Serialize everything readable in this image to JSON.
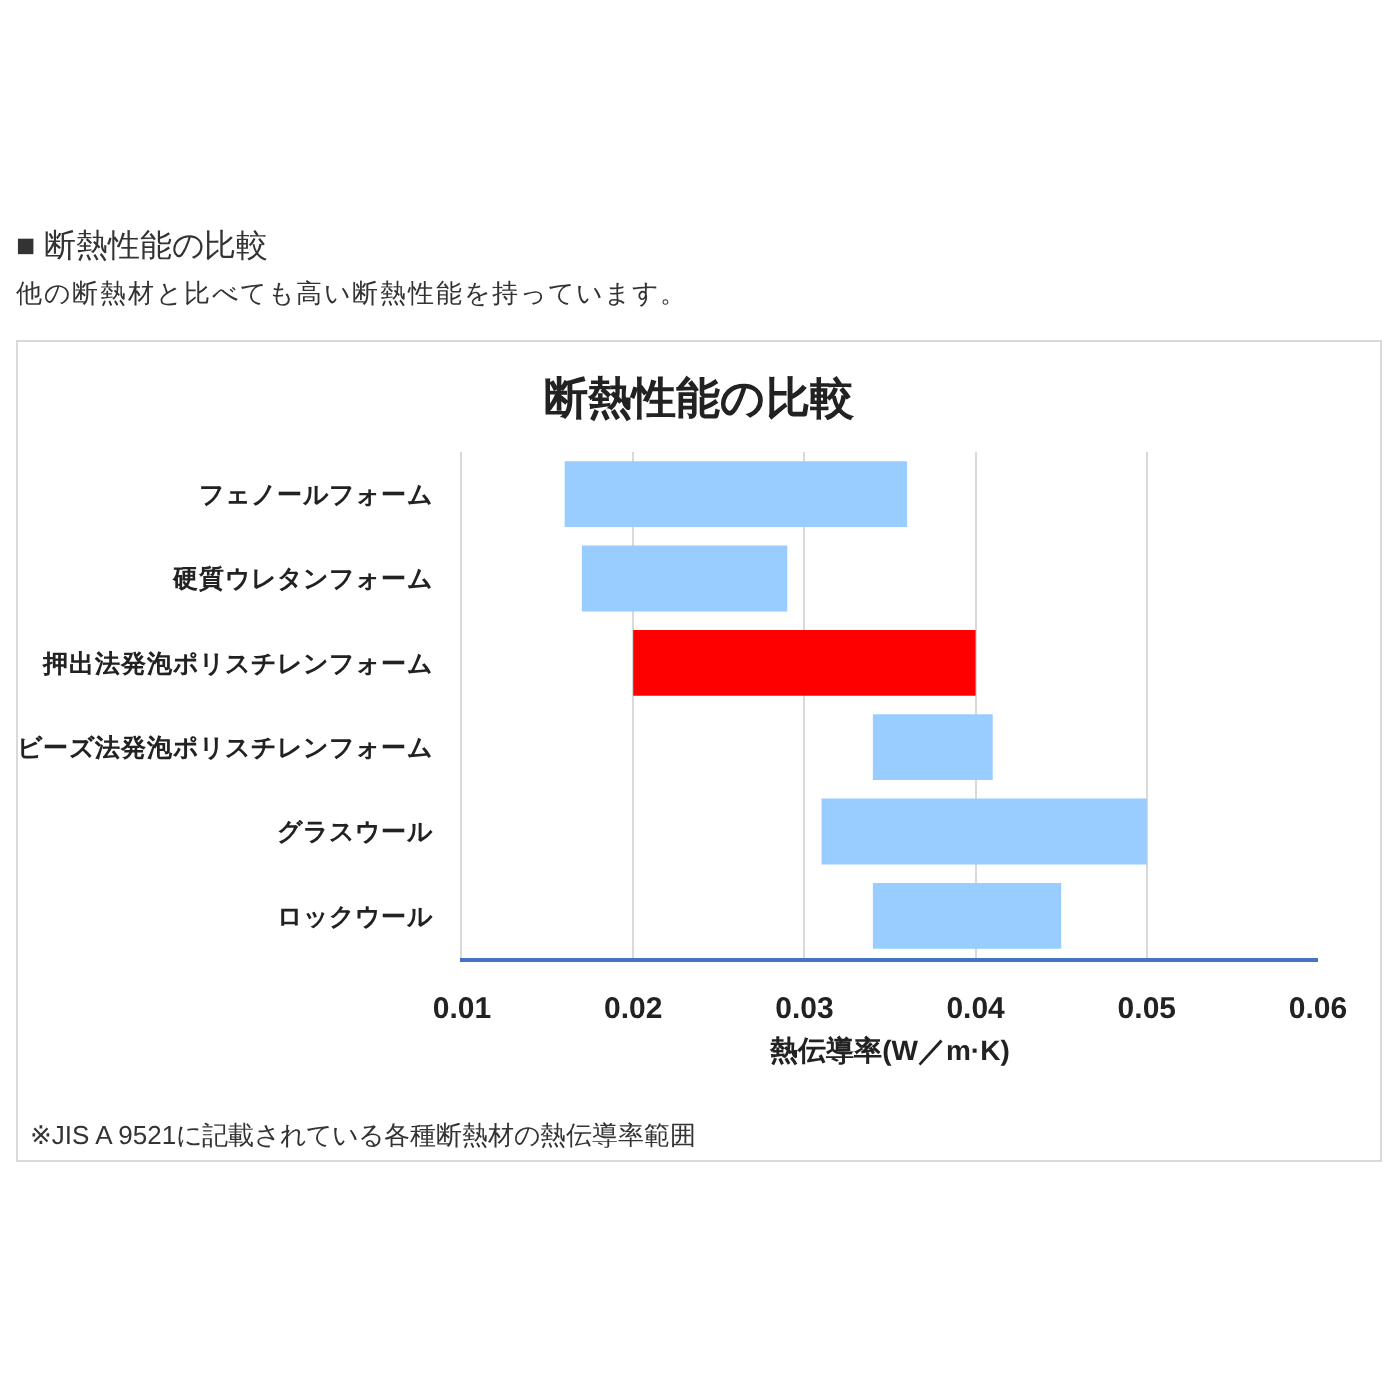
{
  "chart_data": {
    "type": "bar",
    "orientation": "horizontal",
    "title": "断熱性能の比較",
    "subtitle": "他の断熱材と比べても高い断熱性能を持っています。",
    "annotations": [
      "■ 断熱性能の比較",
      "※JIS A 9521に記載されている各種断熱材の熱伝導率範囲"
    ],
    "xlabel": "熱伝導率(W／m·K)",
    "categories": [
      "フェノールフォーム",
      "硬質ウレタンフォーム",
      "押出法発泡ポリスチレンフォーム",
      "ビーズ法発泡ポリスチレンフォーム",
      "グラスウール",
      "ロックウール"
    ],
    "base": [
      0.016,
      0.017,
      0.02,
      0.034,
      0.031,
      0.034
    ],
    "values": [
      0.02,
      0.012,
      0.02,
      0.007,
      0.019,
      0.011
    ],
    "colors": [
      "#99ccff",
      "#99ccff",
      "#ff0000",
      "#99ccff",
      "#99ccff",
      "#99ccff"
    ],
    "xlim": [
      0.01,
      0.06
    ],
    "xticks": [
      0.01,
      0.02,
      0.03,
      0.04,
      0.05,
      0.06
    ],
    "grid": "x"
  }
}
